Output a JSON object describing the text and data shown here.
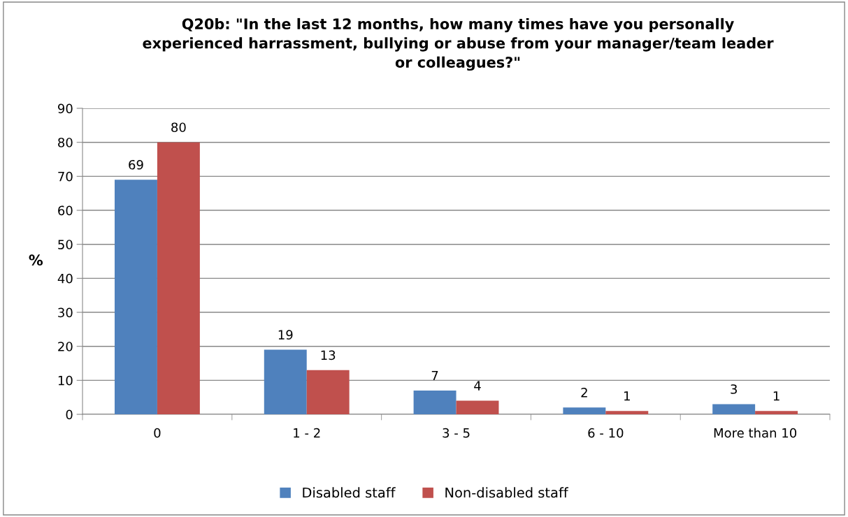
{
  "chart_data": {
    "type": "bar",
    "title": "Q20b: \"In the last 12 months, how many times have you personally\nexperienced harrassment, bullying or abuse from your manager/team leader\nor colleagues?\"",
    "ylabel": "%",
    "categories": [
      "0",
      "1 - 2",
      "3 - 5",
      "6 - 10",
      "More than 10"
    ],
    "series": [
      {
        "name": "Disabled staff",
        "color": "#4f81bd",
        "values": [
          69,
          19,
          7,
          2,
          3
        ]
      },
      {
        "name": "Non-disabled staff",
        "color": "#c0504d",
        "values": [
          80,
          13,
          4,
          1,
          1
        ]
      }
    ],
    "ylim": [
      0,
      90
    ],
    "yticks": [
      0,
      10,
      20,
      30,
      40,
      50,
      60,
      70,
      80,
      90
    ],
    "grid": "y",
    "legend": "bottom",
    "data_labels": true
  }
}
